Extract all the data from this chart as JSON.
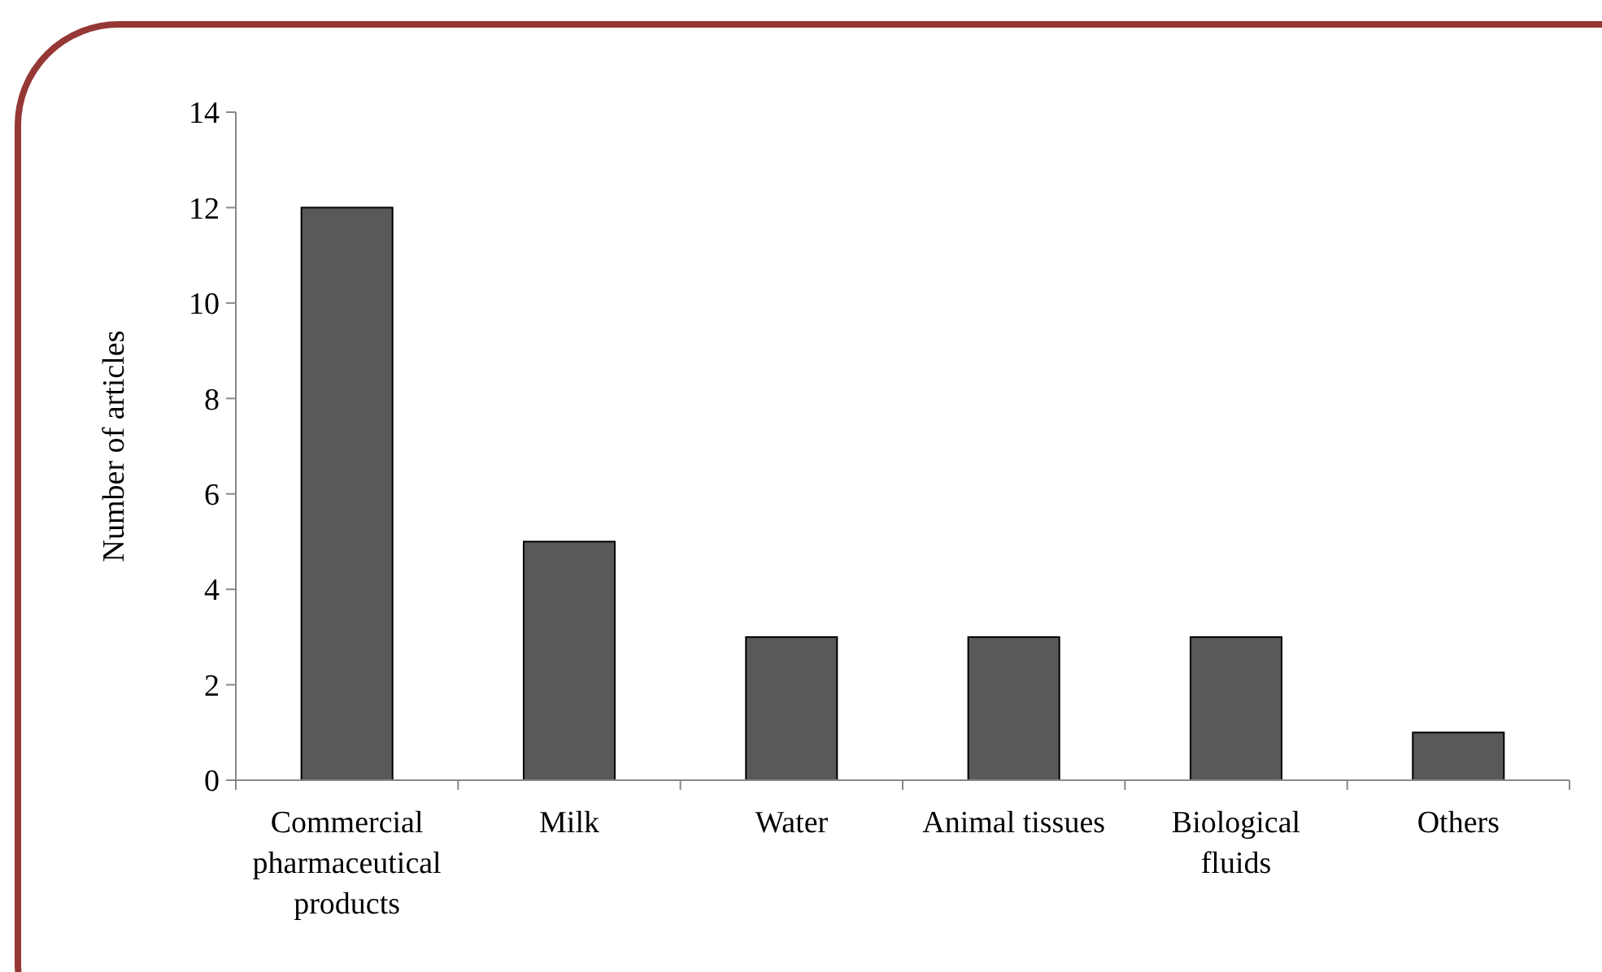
{
  "chart_data": {
    "type": "bar",
    "ylabel": "Number of articles",
    "categories": [
      "Commercial pharmaceutical products",
      "Milk",
      "Water",
      "Animal tissues",
      "Biological fluids",
      "Others"
    ],
    "values": [
      12,
      5,
      3,
      3,
      3,
      1
    ],
    "color": "#595959",
    "ylim": [
      0,
      14
    ],
    "yticks": [
      0,
      2,
      4,
      6,
      8,
      10,
      12,
      14
    ],
    "grid": false
  }
}
